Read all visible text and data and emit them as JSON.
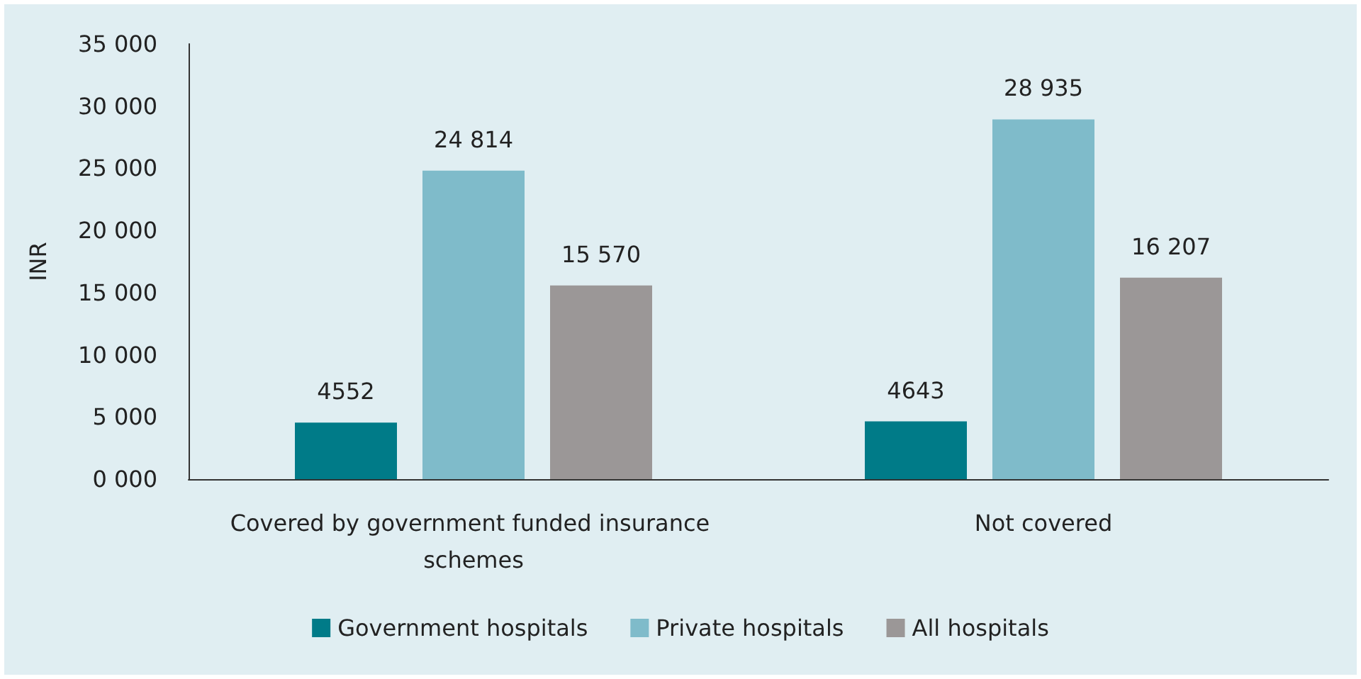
{
  "chart_data": {
    "type": "bar",
    "ylabel": "INR",
    "categories": [
      "Covered by government funded insurance schemes",
      "Not covered"
    ],
    "series": [
      {
        "name": "Government hospitals",
        "color": "#007b88",
        "values": [
          4552,
          4643
        ],
        "value_labels": [
          "4552",
          "4643"
        ]
      },
      {
        "name": "Private hospitals",
        "color": "#7fbbca",
        "values": [
          24814,
          28935
        ],
        "value_labels": [
          "24 814",
          "28 935"
        ]
      },
      {
        "name": "All hospitals",
        "color": "#9b9797",
        "values": [
          15570,
          16207
        ],
        "value_labels": [
          "15 570",
          "16 207"
        ]
      }
    ],
    "ylim": [
      0,
      35000
    ],
    "yticks": [
      {
        "value": 0,
        "label": "0 000"
      },
      {
        "value": 5000,
        "label": "5 000"
      },
      {
        "value": 10000,
        "label": "10 000"
      },
      {
        "value": 15000,
        "label": "15 000"
      },
      {
        "value": 20000,
        "label": "20 000"
      },
      {
        "value": 25000,
        "label": "25 000"
      },
      {
        "value": 30000,
        "label": "30 000"
      },
      {
        "value": 35000,
        "label": "35 000"
      }
    ],
    "grid": false,
    "legend": "bottom"
  }
}
